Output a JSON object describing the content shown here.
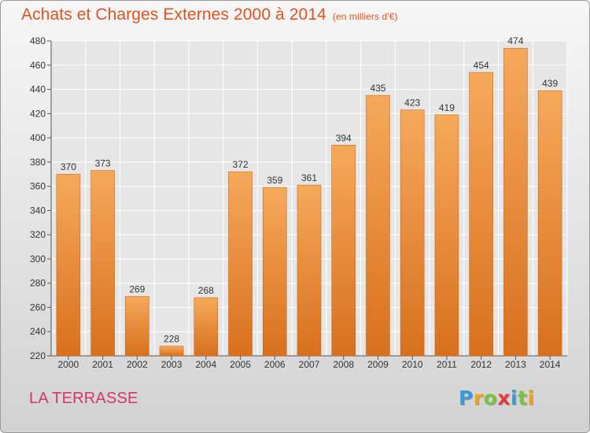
{
  "header": {
    "title": "Achats et Charges Externes 2000 à 2014",
    "subtitle": "(en milliers d'€)"
  },
  "footer": {
    "place": "LA TERRASSE",
    "logo": {
      "letters": [
        "P",
        "r",
        "o",
        "x",
        "i",
        "t",
        "i"
      ],
      "colors": [
        "#3a9ad9",
        "#f0a020",
        "#7cc242",
        "#e23b3b",
        "#3a9ad9",
        "#7cc242",
        "#f0a020"
      ]
    }
  },
  "colors": {
    "title": "#e0521c",
    "place": "#d5356b",
    "bar_light": "#f6a95a",
    "bar_dark": "#d8701e",
    "grid": "#ffffff"
  },
  "chart_data": {
    "type": "bar",
    "title": "Achats et Charges Externes 2000 à 2014",
    "subtitle": "(en milliers d'€)",
    "categories": [
      "2000",
      "2001",
      "2002",
      "2003",
      "2004",
      "2005",
      "2006",
      "2007",
      "2008",
      "2009",
      "2010",
      "2011",
      "2012",
      "2013",
      "2014"
    ],
    "values": [
      370,
      373,
      269,
      228,
      268,
      372,
      359,
      361,
      394,
      435,
      423,
      419,
      454,
      474,
      439
    ],
    "ylim": [
      220,
      480
    ],
    "yticks": [
      220,
      240,
      260,
      280,
      300,
      320,
      340,
      360,
      380,
      400,
      420,
      440,
      460,
      480
    ],
    "grid": true,
    "legend": "none",
    "xlabel": "",
    "ylabel": ""
  }
}
